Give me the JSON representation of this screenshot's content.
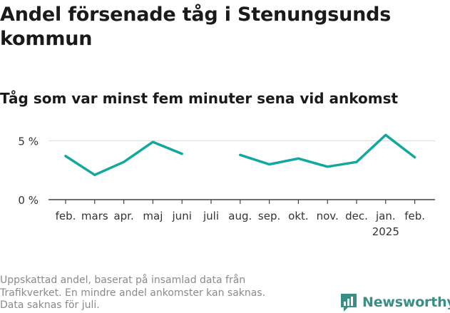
{
  "title": "Andel försenade tåg i Stenungsunds kommun",
  "subtitle": "Tåg som var minst fem minuter sena vid ankomst",
  "chart_data": {
    "type": "line",
    "categories": [
      "feb.",
      "mars",
      "apr.",
      "maj",
      "juni",
      "juli",
      "aug.",
      "sep.",
      "okt.",
      "nov.",
      "dec.",
      "jan.",
      "feb."
    ],
    "category_sublabels": [
      "",
      "",
      "",
      "",
      "",
      "",
      "",
      "",
      "",
      "",
      "",
      "2025",
      ""
    ],
    "series": [
      {
        "values": [
          3.7,
          2.1,
          3.2,
          4.9,
          3.9,
          null,
          3.8,
          3.0,
          3.5,
          2.8,
          3.2,
          5.5,
          3.6
        ]
      }
    ],
    "y_ticks": [
      0,
      5
    ],
    "y_tick_labels": [
      "0 %",
      "5 %"
    ],
    "ylim": [
      0,
      6.2
    ],
    "grid": true,
    "line_color": "#13a89e"
  },
  "footnote": {
    "lines": [
      "Uppskattad andel, baserat på insamlad data från",
      "Trafikverket. En mindre andel ankomster kan saknas.",
      "Data saknas för juli."
    ]
  },
  "logo": {
    "text": "Newsworthy",
    "icon": "bar-chart-icon",
    "color": "#3a8f84"
  }
}
